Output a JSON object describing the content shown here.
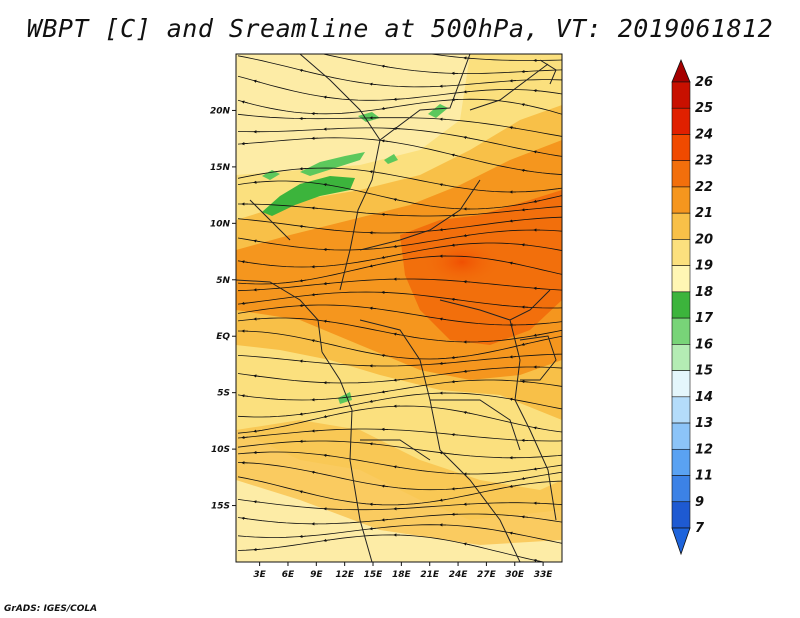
{
  "title": "WBPT [C] and Sreamline at 500hPa, VT: 2019061812",
  "footer": "GrADS: IGES/COLA",
  "map": {
    "lat_ticks": [
      {
        "value": 20,
        "label": "20N"
      },
      {
        "value": 15,
        "label": "15N"
      },
      {
        "value": 10,
        "label": "10N"
      },
      {
        "value": 5,
        "label": "5N"
      },
      {
        "value": 0,
        "label": "EQ"
      },
      {
        "value": -5,
        "label": "5S"
      },
      {
        "value": -10,
        "label": "10S"
      },
      {
        "value": -15,
        "label": "15S"
      }
    ],
    "lon_ticks": [
      {
        "value": 3,
        "label": "3E"
      },
      {
        "value": 6,
        "label": "6E"
      },
      {
        "value": 9,
        "label": "9E"
      },
      {
        "value": 12,
        "label": "12E"
      },
      {
        "value": 15,
        "label": "15E"
      },
      {
        "value": 18,
        "label": "18E"
      },
      {
        "value": 21,
        "label": "21E"
      },
      {
        "value": 24,
        "label": "24E"
      },
      {
        "value": 27,
        "label": "27E"
      },
      {
        "value": 30,
        "label": "30E"
      },
      {
        "value": 33,
        "label": "33E"
      }
    ],
    "lon_range": [
      0.5,
      35
    ],
    "lat_range": [
      -20,
      25
    ]
  },
  "colorbar": {
    "levels": [
      {
        "label": "26",
        "color": "#a50000"
      },
      {
        "label": "25",
        "color": "#c81000"
      },
      {
        "label": "24",
        "color": "#e02000"
      },
      {
        "label": "23",
        "color": "#f04a00"
      },
      {
        "label": "22",
        "color": "#f26f0c"
      },
      {
        "label": "21",
        "color": "#f5961e"
      },
      {
        "label": "20",
        "color": "#f8c048"
      },
      {
        "label": "19",
        "color": "#fbe07e"
      },
      {
        "label": "18",
        "color": "#fff6b4"
      },
      {
        "label": "17",
        "color": "#3cb43c"
      },
      {
        "label": "16",
        "color": "#78d478"
      },
      {
        "label": "15",
        "color": "#b4ecb4"
      },
      {
        "label": "14",
        "color": "#e4f6fc"
      },
      {
        "label": "13",
        "color": "#b4dcfa"
      },
      {
        "label": "12",
        "color": "#8cc4f8"
      },
      {
        "label": "11",
        "color": "#5aa2f2"
      },
      {
        "label": "9",
        "color": "#3c82e6"
      },
      {
        "label": "7",
        "color": "#1e5ad2"
      }
    ],
    "bottom_color": "#1e64dc"
  },
  "colors": {
    "base": "#fbe07e",
    "light": "#fdeca6",
    "orange1": "#f8c048",
    "orange2": "#f5961e",
    "orange3": "#f26f0c",
    "red": "#f04a00",
    "green": "#3cb43c",
    "green_light": "#5cc85c"
  }
}
